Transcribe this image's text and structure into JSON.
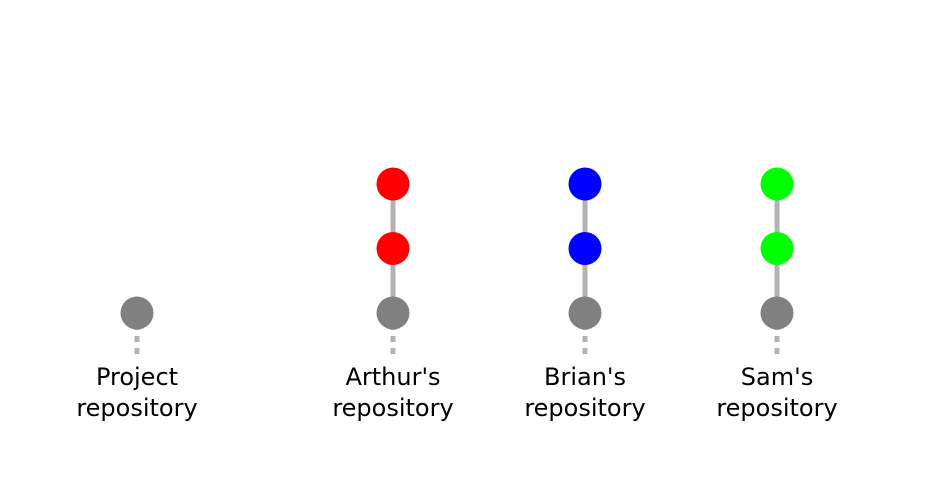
{
  "colors": {
    "line": "#b3b3b3",
    "base_commit": "#808080"
  },
  "repositories": [
    {
      "id": "project",
      "label_line1": "Project",
      "label_line2": "repository",
      "new_commits": 0,
      "commit_color": "#808080"
    },
    {
      "id": "arthur",
      "label_line1": "Arthur's",
      "label_line2": "repository",
      "new_commits": 2,
      "commit_color": "#ff0000"
    },
    {
      "id": "brian",
      "label_line1": "Brian's",
      "label_line2": "repository",
      "new_commits": 2,
      "commit_color": "#0000ff"
    },
    {
      "id": "sam",
      "label_line1": "Sam's",
      "label_line2": "repository",
      "new_commits": 2,
      "commit_color": "#00ff00"
    }
  ]
}
